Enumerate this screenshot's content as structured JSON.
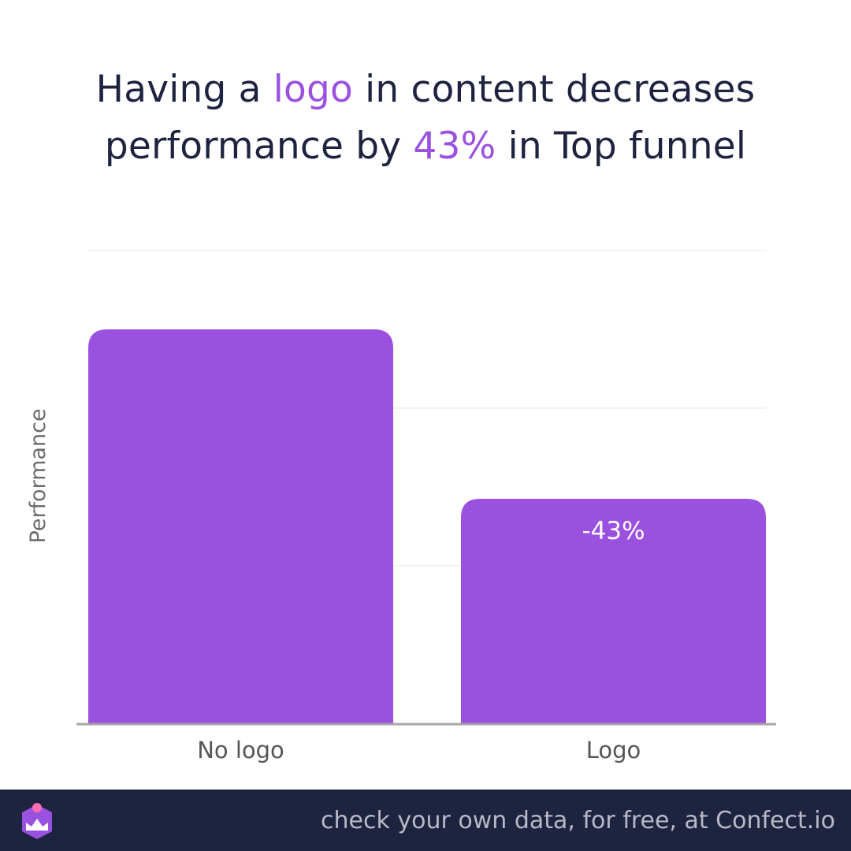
{
  "title": {
    "part1": "Having a ",
    "highlight1": "logo",
    "part2": " in content decreases",
    "part3": "performance by ",
    "highlight2": "43%",
    "part4": " in Top funnel"
  },
  "colors": {
    "bar": "#9b51e0",
    "highlight": "#9b51e0",
    "title": "#1e2340",
    "footer_bg": "#1e2340",
    "grid": "#e6e6e6",
    "axis": "#a6a6a6"
  },
  "chart_data": {
    "type": "bar",
    "categories": [
      "No logo",
      "Logo"
    ],
    "values": [
      100,
      57
    ],
    "data_labels": [
      "",
      "-43%"
    ],
    "ylabel": "Performance",
    "xlabel": "",
    "ylim": [
      0,
      120
    ],
    "grid": true,
    "legend": "none"
  },
  "footer": {
    "text": "check your own data, for free, at Confect.io",
    "logo_icon": "confect-logo-icon"
  }
}
